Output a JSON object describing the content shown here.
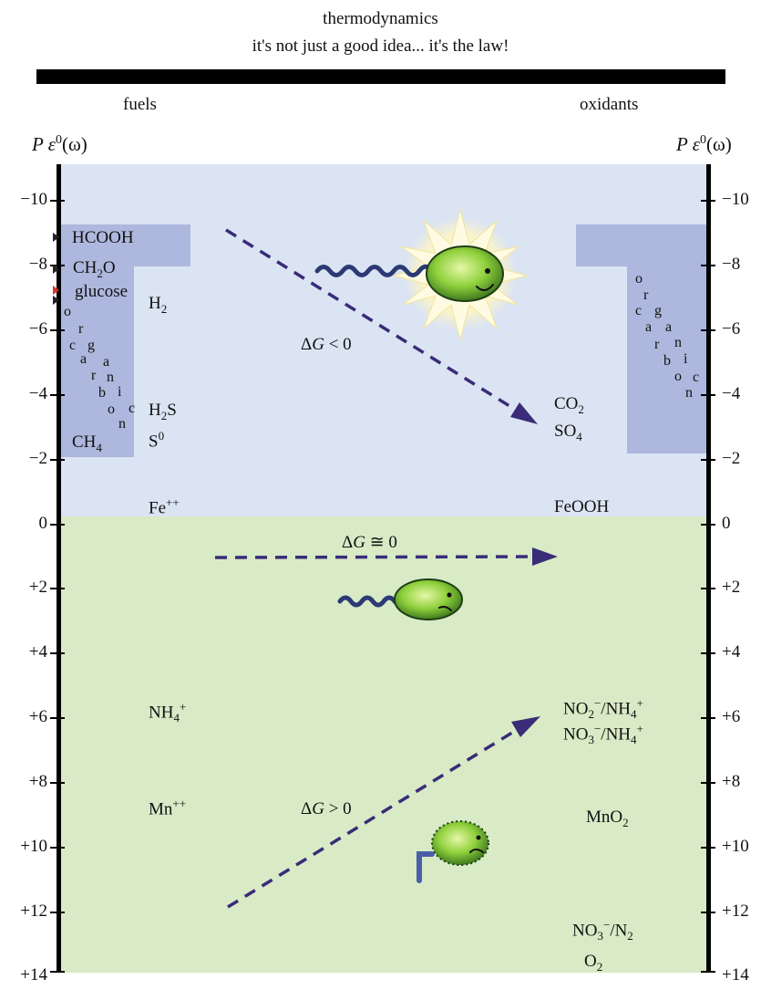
{
  "title": {
    "line1": "thermodynamics",
    "line2": "it's not just a good idea... it's the law!"
  },
  "headers": {
    "fuels": "fuels",
    "oxidants": "oxidants"
  },
  "axis": {
    "symbol": "P ε",
    "superscript": "0",
    "omega": "(ω)",
    "ticks": [
      "−10",
      "−8",
      "−6",
      "−4",
      "−2",
      "0",
      "+2",
      "+4",
      "+6",
      "+8",
      "+10",
      "+12",
      "+14"
    ]
  },
  "organic_word": [
    "o",
    "r",
    "g",
    "a",
    "n",
    "i",
    "c"
  ],
  "organic_interleaved": [
    "c",
    "a",
    "r",
    "b",
    "o",
    "n"
  ],
  "fuels": {
    "hcooh": "HCOOH",
    "ch2o": {
      "pre": "CH",
      "sub": "2",
      "post": "O"
    },
    "glucose": "glucose",
    "h2": {
      "pre": "H",
      "sub": "2"
    },
    "h2s": {
      "pre": "H",
      "sub": "2",
      "post": "S"
    },
    "ch4": {
      "pre": "CH",
      "sub": "4"
    },
    "s0": {
      "pre": "S",
      "sup": "0"
    },
    "fe": {
      "pre": "Fe",
      "sup": "++"
    },
    "nh4": {
      "pre": "NH",
      "sub": "4",
      "sup": "+"
    },
    "mn": {
      "pre": "Mn",
      "sup": "++"
    }
  },
  "oxidants": {
    "co2": {
      "pre": "CO",
      "sub": "2"
    },
    "so4": {
      "pre": "SO",
      "sub": "4"
    },
    "feooh": "FeOOH",
    "no2nh4": {
      "a": "NO",
      "a_sub": "2",
      "a_sup": "−",
      "b": "/NH",
      "b_sub": "4",
      "b_sup": "+"
    },
    "no3nh4": {
      "a": "NO",
      "a_sub": "3",
      "a_sup": "−",
      "b": "/NH",
      "b_sub": "4",
      "b_sup": "+"
    },
    "mno2": {
      "pre": "MnO",
      "sub": "2"
    },
    "no3n2": {
      "a": "NO",
      "a_sub": "3",
      "a_sup": "−",
      "b": "/N",
      "b_sub": "2"
    },
    "o2": {
      "pre": "O",
      "sub": "2"
    }
  },
  "delta_g": {
    "symbol": "Δ",
    "var": "G",
    "neg": " < 0",
    "zero": " ≅ 0",
    "pos": " > 0"
  },
  "colors": {
    "exergonic_zone": "#dbe4f3",
    "endergonic_zone": "#d8ebc6",
    "organic_carbon": "#aeb7dd",
    "arrow": "#3a2c78",
    "microbe_body": "#8fd03c"
  }
}
